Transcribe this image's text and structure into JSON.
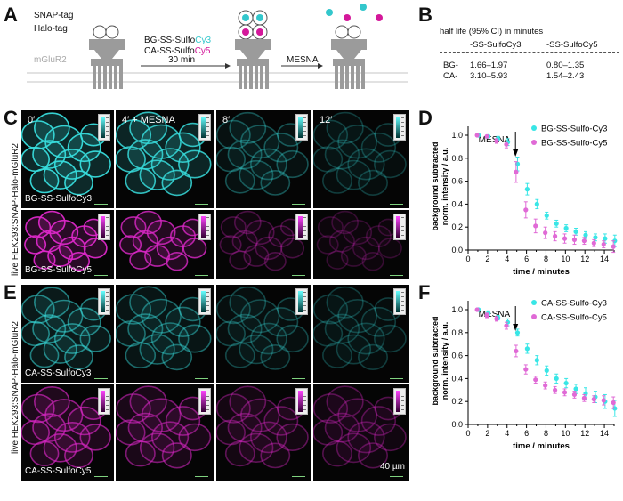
{
  "panels": {
    "A": "A",
    "B": "B",
    "C": "C",
    "D": "D",
    "E": "E",
    "F": "F"
  },
  "schematic": {
    "snap_tag": "SNAP-tag",
    "halo_tag": "Halo-tag",
    "receptor": "mGluR2",
    "reagent1_prefix": "BG-SS-Sulfo",
    "reagent1_suffix": "Cy3",
    "reagent2_prefix": "CA-SS-Sulfo",
    "reagent2_suffix": "Cy5",
    "time": "30 min",
    "mesna": "MESNA",
    "colors": {
      "cy3": "#33c7cc",
      "cy5": "#d4189a",
      "membrane": "#c4c4c4",
      "receptor": "#9b9b9b"
    }
  },
  "halflife_table": {
    "title": "half life (95% CI) in minutes",
    "columns": [
      "-SS-SulfoCy3",
      "-SS-SulfoCy5"
    ],
    "rows": [
      {
        "label": "BG-",
        "cy3": "1.66–1.97",
        "cy5": "0.80–1.35"
      },
      {
        "label": "CA-",
        "cy3": "3.10–5.93",
        "cy5": "1.54–2.43"
      }
    ]
  },
  "microscopy": {
    "timepoints": [
      "0′",
      "4′ + MESNA",
      "8′",
      "12′"
    ],
    "side_label_C": "live HEK293:SNAP-Halo-mGluR2",
    "side_label_E": "live HEK293:SNAP-Halo-mGluR2",
    "row_labels": {
      "C1": "BG-SS-SulfoCy3",
      "C2": "BG-SS-SulfoCy5",
      "E1": "CA-SS-SulfoCy3",
      "E2": "CA-SS-SulfoCy5"
    },
    "scale_bar": "40 µm"
  },
  "chart_data": [
    {
      "panel": "D",
      "type": "scatter",
      "title": "",
      "xlabel": "time / minutes",
      "ylabel_line1": "background subtracted",
      "ylabel_line2": "norm. intensity / a.u.",
      "xlim": [
        0,
        15
      ],
      "ylim": [
        0,
        1.0
      ],
      "xticks": [
        0,
        2,
        4,
        6,
        8,
        10,
        12,
        14
      ],
      "yticks": [
        0.0,
        0.2,
        0.4,
        0.6,
        0.8,
        1.0
      ],
      "ytick_labels": [
        "0.0",
        "0.2",
        "0.4",
        "0.6",
        "0.8",
        "1.0"
      ],
      "annotation": "MESNA",
      "annotation_x": 4.5,
      "series": [
        {
          "name": "BG-SS-Sulfo-Cy3",
          "color": "#38e6e6",
          "x": [
            1,
            2,
            3,
            4,
            5,
            6,
            7,
            8,
            9,
            10,
            11,
            12,
            13,
            14,
            15
          ],
          "y": [
            1.0,
            0.99,
            0.97,
            0.94,
            0.75,
            0.53,
            0.4,
            0.3,
            0.23,
            0.19,
            0.16,
            0.13,
            0.11,
            0.1,
            0.08
          ],
          "err": [
            0.005,
            0.01,
            0.02,
            0.03,
            0.06,
            0.05,
            0.04,
            0.03,
            0.03,
            0.03,
            0.03,
            0.03,
            0.03,
            0.04,
            0.05
          ]
        },
        {
          "name": "BG-SS-Sulfo-Cy5",
          "color": "#e06ad6",
          "x": [
            1,
            2,
            3,
            4,
            5,
            6,
            7,
            8,
            9,
            10,
            11,
            12,
            13,
            14,
            15
          ],
          "y": [
            1.0,
            0.99,
            0.95,
            0.92,
            0.68,
            0.35,
            0.21,
            0.15,
            0.12,
            0.1,
            0.09,
            0.08,
            0.06,
            0.05,
            0.03
          ],
          "err": [
            0.005,
            0.01,
            0.02,
            0.03,
            0.09,
            0.07,
            0.06,
            0.05,
            0.04,
            0.04,
            0.04,
            0.03,
            0.03,
            0.03,
            0.05
          ]
        }
      ]
    },
    {
      "panel": "F",
      "type": "scatter",
      "title": "",
      "xlabel": "time / minutes",
      "ylabel_line1": "background subtracted",
      "ylabel_line2": "norm. intensity / a.u.",
      "xlim": [
        0,
        15
      ],
      "ylim": [
        0,
        1.0
      ],
      "xticks": [
        0,
        2,
        4,
        6,
        8,
        10,
        12,
        14
      ],
      "yticks": [
        0.0,
        0.2,
        0.4,
        0.6,
        0.8,
        1.0
      ],
      "ytick_labels": [
        "0.0",
        "0.2",
        "0.4",
        "0.6",
        "0.8",
        "1.0"
      ],
      "annotation": "MESNA",
      "annotation_x": 4.5,
      "series": [
        {
          "name": "CA-SS-Sulfo-Cy3",
          "color": "#38e6e6",
          "x": [
            1,
            2,
            3,
            4,
            5,
            6,
            7,
            8,
            9,
            10,
            11,
            12,
            13,
            14,
            15
          ],
          "y": [
            1.0,
            0.97,
            0.93,
            0.89,
            0.8,
            0.66,
            0.56,
            0.47,
            0.4,
            0.36,
            0.31,
            0.27,
            0.24,
            0.2,
            0.14
          ],
          "err": [
            0.005,
            0.02,
            0.02,
            0.03,
            0.03,
            0.04,
            0.04,
            0.04,
            0.04,
            0.04,
            0.04,
            0.05,
            0.05,
            0.06,
            0.07
          ]
        },
        {
          "name": "CA-SS-Sulfo-Cy5",
          "color": "#e06ad6",
          "x": [
            1,
            2,
            3,
            4,
            5,
            6,
            7,
            8,
            9,
            10,
            11,
            12,
            13,
            14,
            15
          ],
          "y": [
            1.0,
            0.95,
            0.92,
            0.86,
            0.64,
            0.48,
            0.39,
            0.34,
            0.3,
            0.28,
            0.26,
            0.23,
            0.22,
            0.21,
            0.19
          ],
          "err": [
            0.005,
            0.02,
            0.02,
            0.03,
            0.05,
            0.04,
            0.03,
            0.03,
            0.03,
            0.03,
            0.03,
            0.03,
            0.03,
            0.04,
            0.05
          ]
        }
      ]
    }
  ]
}
